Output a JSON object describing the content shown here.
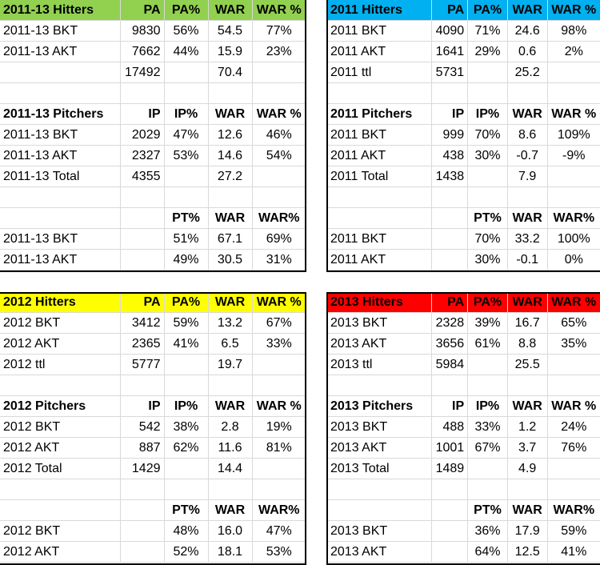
{
  "colors": {
    "green": "#92d050",
    "blue": "#00b0f0",
    "yellow": "#ffff00",
    "red": "#ff0000"
  },
  "panels": [
    {
      "id": "tl",
      "headerColor": "#92d050",
      "hitters": {
        "header": [
          "2011-13 Hitters",
          "PA",
          "PA%",
          "WAR",
          "WAR %"
        ],
        "rows": [
          [
            "2011-13 BKT",
            "9830",
            "56%",
            "54.5",
            "77%"
          ],
          [
            "2011-13 AKT",
            "7662",
            "44%",
            "15.9",
            "23%"
          ],
          [
            "",
            "17492",
            "",
            "70.4",
            ""
          ]
        ]
      },
      "pitchers": {
        "header": [
          "2011-13 Pitchers",
          "IP",
          "IP%",
          "WAR",
          "WAR %"
        ],
        "rows": [
          [
            "2011-13 BKT",
            "2029",
            "47%",
            "12.6",
            "46%"
          ],
          [
            "2011-13 AKT",
            "2327",
            "53%",
            "14.6",
            "54%"
          ],
          [
            "2011-13 Total",
            "4355",
            "",
            "27.2",
            ""
          ]
        ]
      },
      "total": {
        "header": [
          "",
          "",
          "PT%",
          "WAR",
          "WAR%"
        ],
        "rows": [
          [
            "2011-13 BKT",
            "",
            "51%",
            "67.1",
            "69%"
          ],
          [
            "2011-13 AKT",
            "",
            "49%",
            "30.5",
            "31%"
          ]
        ]
      }
    },
    {
      "id": "tr",
      "headerColor": "#00b0f0",
      "hitters": {
        "header": [
          "2011 Hitters",
          "PA",
          "PA%",
          "WAR",
          "WAR %"
        ],
        "rows": [
          [
            "2011 BKT",
            "4090",
            "71%",
            "24.6",
            "98%"
          ],
          [
            "2011 AKT",
            "1641",
            "29%",
            "0.6",
            "2%"
          ],
          [
            "2011 ttl",
            "5731",
            "",
            "25.2",
            ""
          ]
        ]
      },
      "pitchers": {
        "header": [
          "2011 Pitchers",
          "IP",
          "IP%",
          "WAR",
          "WAR %"
        ],
        "rows": [
          [
            "2011 BKT",
            "999",
            "70%",
            "8.6",
            "109%"
          ],
          [
            "2011 AKT",
            "438",
            "30%",
            "-0.7",
            "-9%"
          ],
          [
            "2011 Total",
            "1438",
            "",
            "7.9",
            ""
          ]
        ]
      },
      "total": {
        "header": [
          "",
          "",
          "PT%",
          "WAR",
          "WAR%"
        ],
        "rows": [
          [
            "2011 BKT",
            "",
            "70%",
            "33.2",
            "100%"
          ],
          [
            "2011 AKT",
            "",
            "30%",
            "-0.1",
            "0%"
          ]
        ]
      }
    },
    {
      "id": "bl",
      "headerColor": "#ffff00",
      "hitters": {
        "header": [
          "2012 Hitters",
          "PA",
          "PA%",
          "WAR",
          "WAR %"
        ],
        "rows": [
          [
            "2012 BKT",
            "3412",
            "59%",
            "13.2",
            "67%"
          ],
          [
            "2012 AKT",
            "2365",
            "41%",
            "6.5",
            "33%"
          ],
          [
            "2012 ttl",
            "5777",
            "",
            "19.7",
            ""
          ]
        ]
      },
      "pitchers": {
        "header": [
          "2012 Pitchers",
          "IP",
          "IP%",
          "WAR",
          "WAR %"
        ],
        "rows": [
          [
            "2012 BKT",
            "542",
            "38%",
            "2.8",
            "19%"
          ],
          [
            "2012 AKT",
            "887",
            "62%",
            "11.6",
            "81%"
          ],
          [
            "2012 Total",
            "1429",
            "",
            "14.4",
            ""
          ]
        ]
      },
      "total": {
        "header": [
          "",
          "",
          "PT%",
          "WAR",
          "WAR%"
        ],
        "rows": [
          [
            "2012 BKT",
            "",
            "48%",
            "16.0",
            "47%"
          ],
          [
            "2012 AKT",
            "",
            "52%",
            "18.1",
            "53%"
          ]
        ]
      }
    },
    {
      "id": "br",
      "headerColor": "#ff0000",
      "hitters": {
        "header": [
          "2013 Hitters",
          "PA",
          "PA%",
          "WAR",
          "WAR %"
        ],
        "rows": [
          [
            "2013 BKT",
            "2328",
            "39%",
            "16.7",
            "65%"
          ],
          [
            "2013 AKT",
            "3656",
            "61%",
            "8.8",
            "35%"
          ],
          [
            "2013 ttl",
            "5984",
            "",
            "25.5",
            ""
          ]
        ]
      },
      "pitchers": {
        "header": [
          "2013 Pitchers",
          "IP",
          "IP%",
          "WAR",
          "WAR %"
        ],
        "rows": [
          [
            "2013 BKT",
            "488",
            "33%",
            "1.2",
            "24%"
          ],
          [
            "2013 AKT",
            "1001",
            "67%",
            "3.7",
            "76%"
          ],
          [
            "2013 Total",
            "1489",
            "",
            "4.9",
            ""
          ]
        ]
      },
      "total": {
        "header": [
          "",
          "",
          "PT%",
          "WAR",
          "WAR%"
        ],
        "rows": [
          [
            "2013 BKT",
            "",
            "36%",
            "17.9",
            "59%"
          ],
          [
            "2013 AKT",
            "",
            "64%",
            "12.5",
            "41%"
          ]
        ]
      }
    }
  ]
}
